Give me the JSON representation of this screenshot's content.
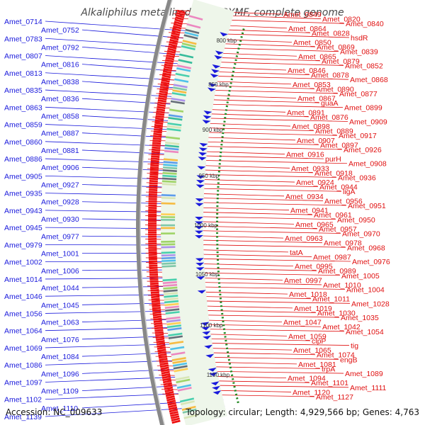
{
  "title": "Alkaliphilus metalliredigens QYMF, complete genome",
  "footer": {
    "accession": "Accession: NC_009633",
    "summary": "Topology: circular; Length: 4,929,566 bp; Genes: 4,763"
  },
  "ruler": {
    "labels": [
      "800 kbp",
      "850 kbp",
      "900 kbp",
      "950 kbp",
      "1000 kbp",
      "1050 kbp",
      "1100 kbp",
      "1150 kbp"
    ]
  },
  "colors": {
    "left_labels": "#1a1adc",
    "right_labels": "#e01010",
    "forward_cds": "#1a1adc",
    "reverse_cds": "#ee1111",
    "backbone": "#888888",
    "ticks": "#228822"
  },
  "left_labels": [
    "Amet_0714",
    "Amet_0752",
    "Amet_0783",
    "Amet_0792",
    "Amet_0807",
    "Amet_0816",
    "Amet_0813",
    "Amet_0838",
    "Amet_0835",
    "Amet_0836",
    "Amet_0863",
    "Amet_0858",
    "Amet_0859",
    "Amet_0887",
    "Amet_0860",
    "Amet_0881",
    "Amet_0886",
    "Amet_0906",
    "Amet_0905",
    "Amet_0927",
    "Amet_0935",
    "Amet_0928",
    "Amet_0943",
    "Amet_0930",
    "Amet_0945",
    "Amet_0977",
    "Amet_0979",
    "Amet_1001",
    "Amet_1002",
    "Amet_1006",
    "Amet_1014",
    "Amet_1044",
    "Amet_1046",
    "Amet_1045",
    "Amet_1056",
    "Amet_1063",
    "Amet_1064",
    "Amet_1076",
    "Amet_1069",
    "Amet_1084",
    "Amet_1086",
    "Amet_1096",
    "Amet_1097",
    "Amet_1109",
    "Amet_1102",
    "Amet_1110",
    "Amet_1139"
  ],
  "right_labels": [
    "Amet_0849",
    "Amet_0820",
    "Amet_0840",
    "Amet_0864",
    "Amet_0828",
    "hsdR",
    "Amet_0850",
    "Amet_0869",
    "Amet_0839",
    "Amet_0865",
    "Amet_0879",
    "Amet_0852",
    "Amet_0846",
    "Amet_0878",
    "Amet_0868",
    "Amet_0853",
    "Amet_0890",
    "Amet_0877",
    "Amet_0867",
    "guaA",
    "Amet_0899",
    "Amet_0891",
    "Amet_0876",
    "Amet_0909",
    "Amet_0898",
    "Amet_0889",
    "Amet_0917",
    "Amet_0907",
    "Amet_0897",
    "Amet_0926",
    "Amet_0916",
    "purH",
    "Amet_0908",
    "Amet_0933",
    "Amet_0918",
    "Amet_0936",
    "Amet_0924",
    "Amet_0944",
    "ligA",
    "Amet_0934",
    "Amet_0956",
    "Amet_0951",
    "Amet_0941",
    "Amet_0961",
    "Amet_0950",
    "Amet_0965",
    "Amet_0957",
    "Amet_0970",
    "Amet_0963",
    "Amet_0978",
    "Amet_0968",
    "tatA",
    "Amet_0987",
    "Amet_0976",
    "Amet_0995",
    "Amet_0989",
    "Amet_1005",
    "Amet_0997",
    "Amet_1010",
    "Amet_1004",
    "Amet_1018",
    "Amet_1011",
    "Amet_1028",
    "Amet_1019",
    "Amet_1030",
    "Amet_1035",
    "Amet_1047",
    "Amet_1042",
    "Amet_1054",
    "Amet_1059",
    "clpP",
    "tig",
    "Amet_1065",
    "Amet_1074",
    "engB",
    "Amet_1081",
    "trpA",
    "Amet_1089",
    "Amet_1094",
    "Amet_1101",
    "Amet_1111",
    "Amet_1120",
    "Amet_1127"
  ]
}
